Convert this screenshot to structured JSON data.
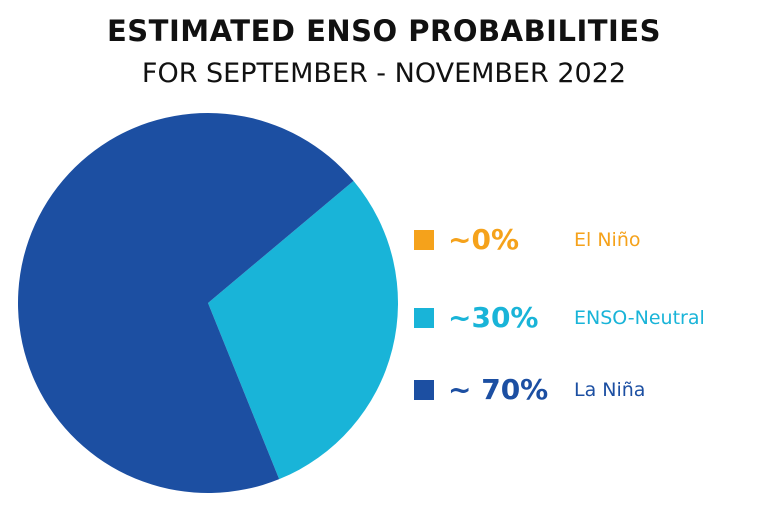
{
  "chart_data": {
    "type": "pie",
    "title": "ESTIMATED ENSO PROBABILITIES",
    "subtitle": "FOR SEPTEMBER - NOVEMBER 2022",
    "slices": [
      {
        "label": "El Niño",
        "value": 0,
        "display": "~0%",
        "color": "#f5a21b"
      },
      {
        "label": "ENSO-Neutral",
        "value": 30,
        "display": "~30%",
        "color": "#19b4d8"
      },
      {
        "label": "La Niña",
        "value": 70,
        "display": "~ 70%",
        "color": "#1c4fa2"
      }
    ],
    "legend_position": "right"
  }
}
